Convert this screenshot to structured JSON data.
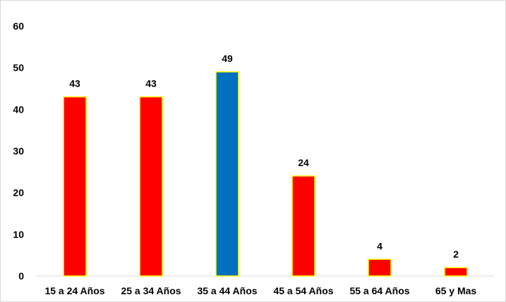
{
  "chart_data": {
    "type": "bar",
    "title": "",
    "xlabel": "",
    "ylabel": "",
    "categories": [
      "15 a 24 Años",
      "25 a 34 Años",
      "35 a 44 Años",
      "45 a 54 Años",
      "55 a 64 Años",
      "65 y Mas"
    ],
    "values": [
      43,
      43,
      49,
      24,
      4,
      2
    ],
    "ylim": [
      0,
      60
    ],
    "yticks": [
      0,
      10,
      20,
      30,
      40,
      50,
      60
    ],
    "grid": false,
    "legend": "none",
    "data_labels": true,
    "colors": [
      "#ff0000",
      "#ff0000",
      "#0070c0",
      "#ff0000",
      "#ff0000",
      "#ff0000"
    ],
    "bar_edge_color": "#ffff00",
    "axis_color": "#d9d9d9"
  }
}
